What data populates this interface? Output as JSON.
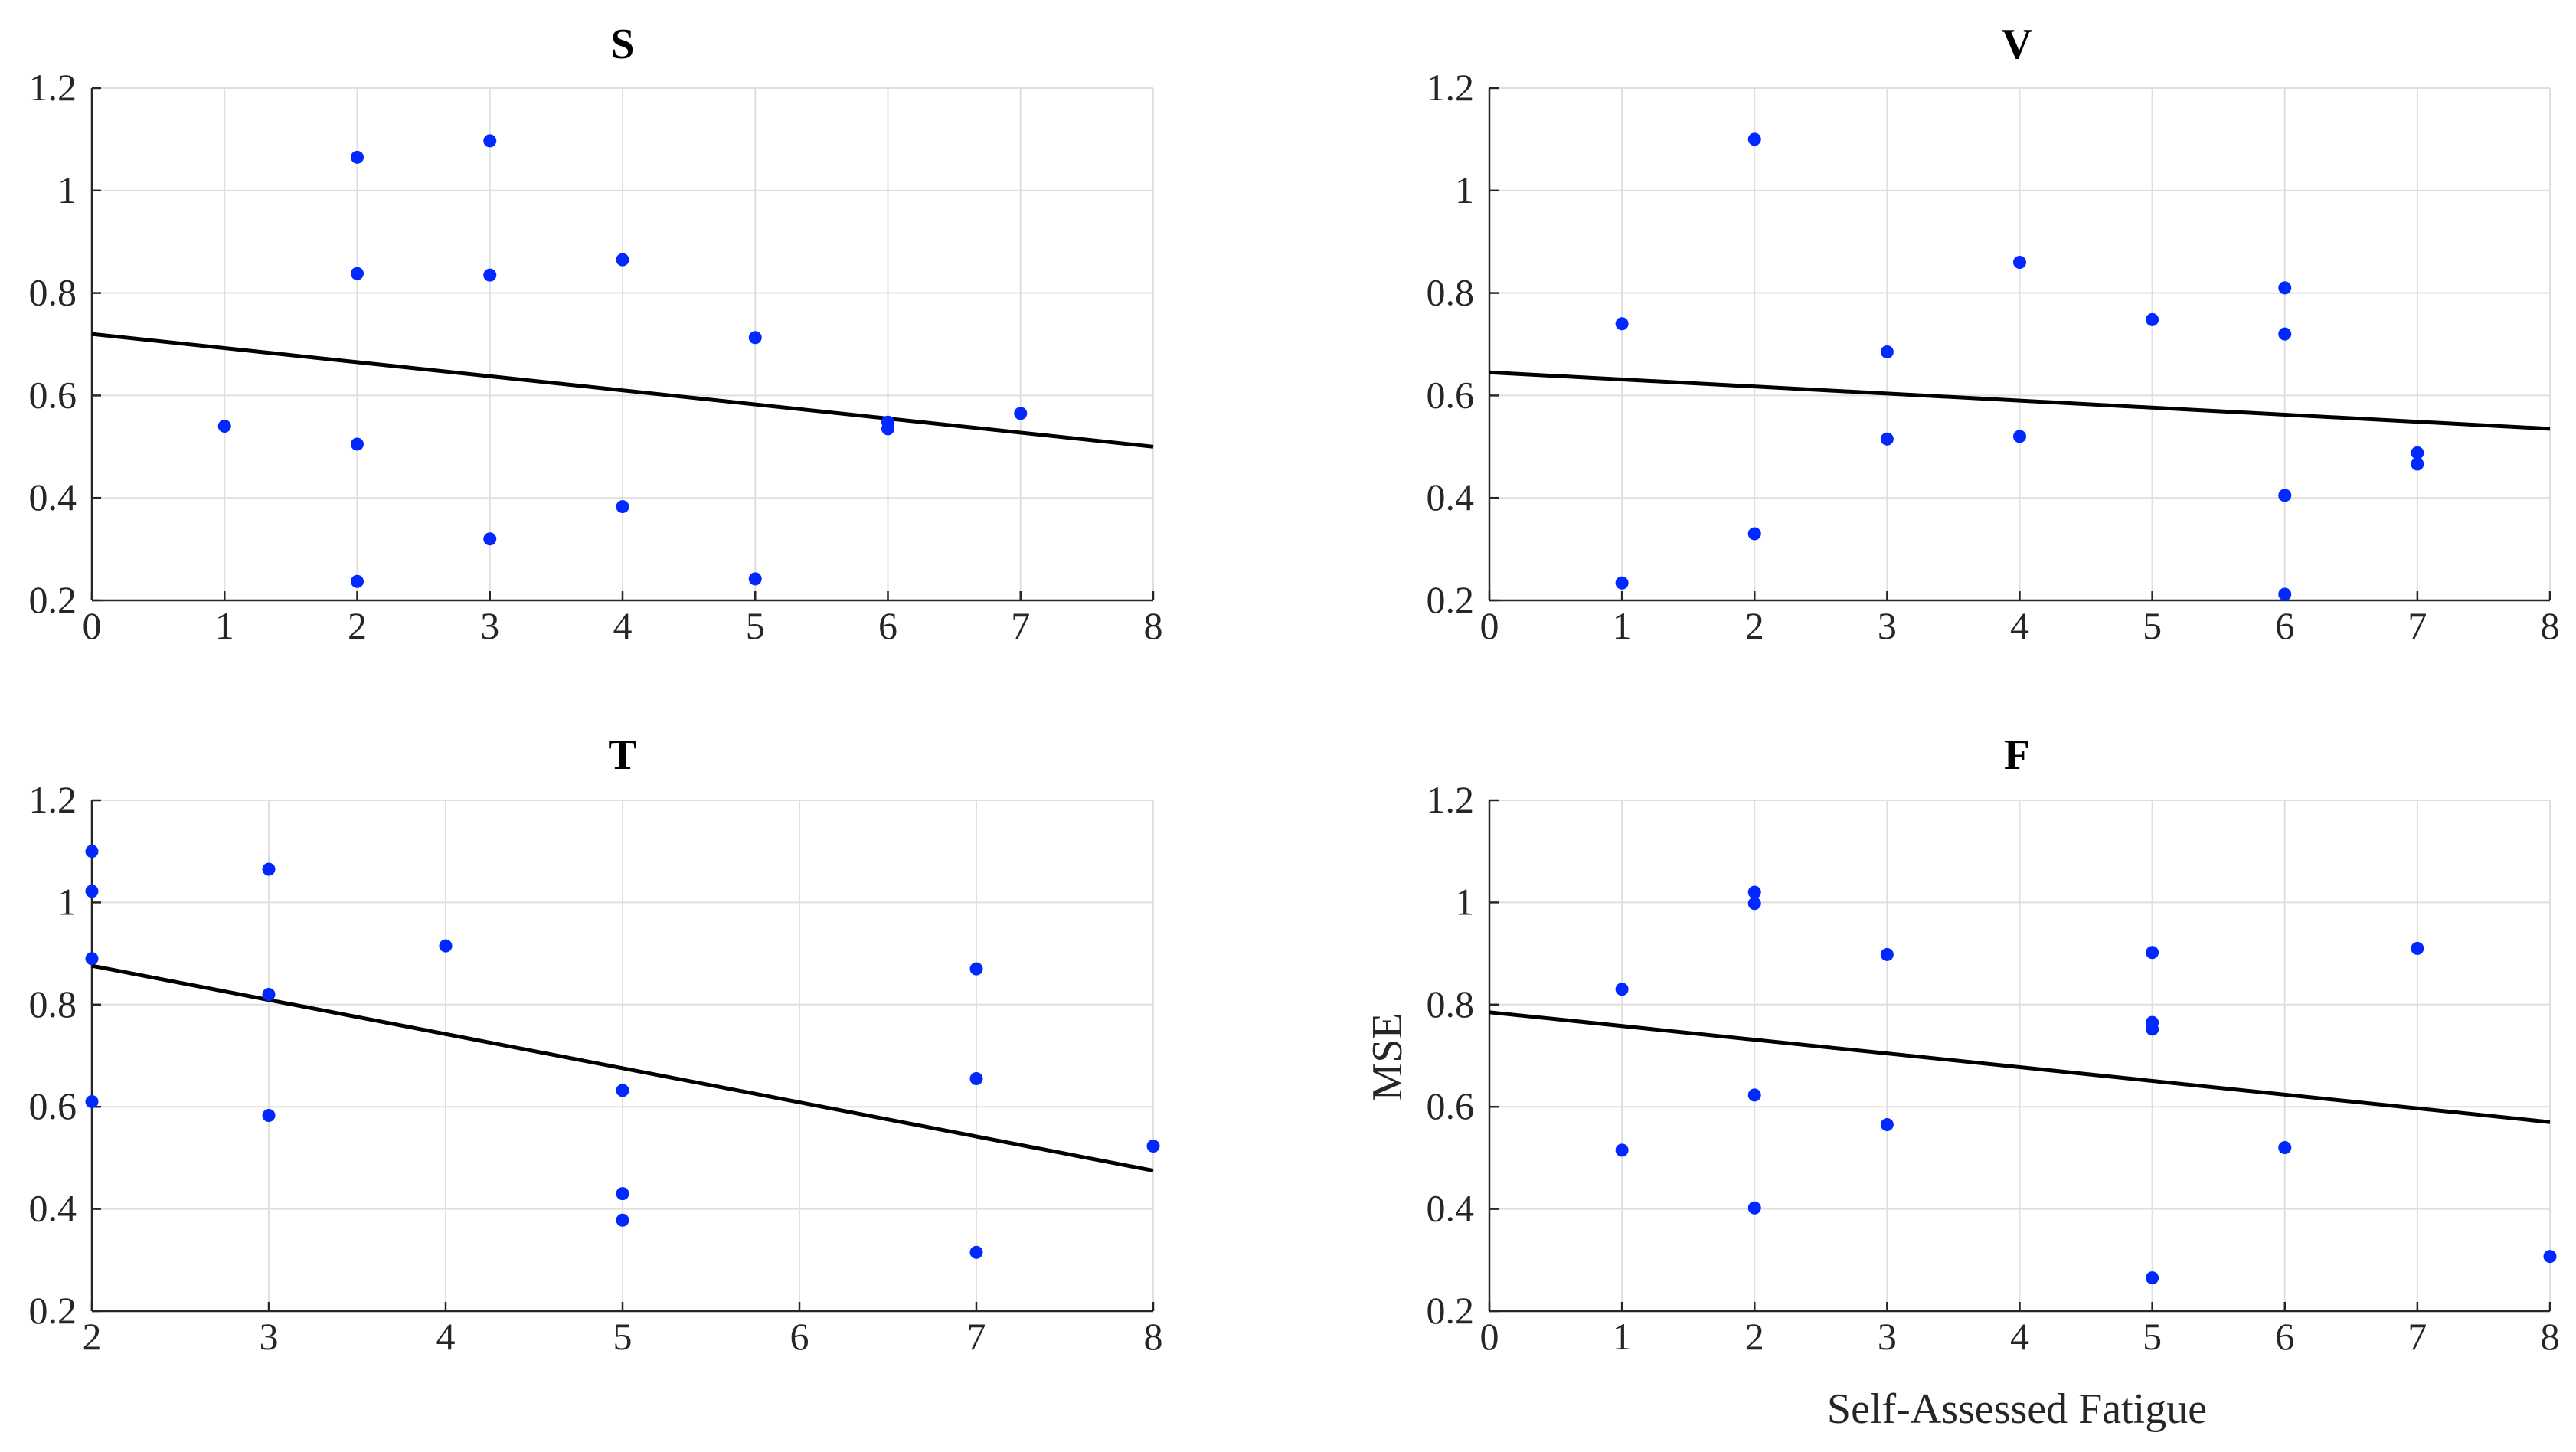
{
  "chart_data": [
    {
      "type": "scatter",
      "title": "S",
      "xlabel": "",
      "ylabel": "",
      "xlim": [
        0,
        8
      ],
      "ylim": [
        0.2,
        1.2
      ],
      "xticks": [
        "0",
        "1",
        "2",
        "3",
        "4",
        "5",
        "6",
        "7",
        "8"
      ],
      "yticks": [
        "0.2",
        "0.4",
        "0.6",
        "0.8",
        "1",
        "1.2"
      ],
      "grid": true,
      "points": [
        {
          "x": 1,
          "y": 0.54
        },
        {
          "x": 2,
          "y": 1.065
        },
        {
          "x": 2,
          "y": 0.838
        },
        {
          "x": 2,
          "y": 0.505
        },
        {
          "x": 2,
          "y": 0.237
        },
        {
          "x": 3,
          "y": 1.097
        },
        {
          "x": 3,
          "y": 0.835
        },
        {
          "x": 3,
          "y": 0.32
        },
        {
          "x": 4,
          "y": 0.865
        },
        {
          "x": 4,
          "y": 0.383
        },
        {
          "x": 5,
          "y": 0.713
        },
        {
          "x": 5,
          "y": 0.242
        },
        {
          "x": 6,
          "y": 0.548
        },
        {
          "x": 6,
          "y": 0.535
        },
        {
          "x": 7,
          "y": 0.565
        }
      ],
      "fit_line": {
        "x": [
          0,
          8
        ],
        "y": [
          0.72,
          0.5
        ]
      }
    },
    {
      "type": "scatter",
      "title": "V",
      "xlabel": "",
      "ylabel": "",
      "xlim": [
        0,
        8
      ],
      "ylim": [
        0.2,
        1.2
      ],
      "xticks": [
        "0",
        "1",
        "2",
        "3",
        "4",
        "5",
        "6",
        "7",
        "8"
      ],
      "yticks": [
        "0.2",
        "0.4",
        "0.6",
        "0.8",
        "1",
        "1.2"
      ],
      "grid": true,
      "points": [
        {
          "x": 1,
          "y": 0.74
        },
        {
          "x": 1,
          "y": 0.234
        },
        {
          "x": 2,
          "y": 1.1
        },
        {
          "x": 2,
          "y": 0.33
        },
        {
          "x": 3,
          "y": 0.685
        },
        {
          "x": 3,
          "y": 0.515
        },
        {
          "x": 4,
          "y": 0.86
        },
        {
          "x": 4,
          "y": 0.52
        },
        {
          "x": 5,
          "y": 0.748
        },
        {
          "x": 6,
          "y": 0.81
        },
        {
          "x": 6,
          "y": 0.72
        },
        {
          "x": 6,
          "y": 0.405
        },
        {
          "x": 6,
          "y": 0.212
        },
        {
          "x": 7,
          "y": 0.488
        },
        {
          "x": 7,
          "y": 0.466
        }
      ],
      "fit_line": {
        "x": [
          0,
          8
        ],
        "y": [
          0.645,
          0.535
        ]
      }
    },
    {
      "type": "scatter",
      "title": "T",
      "xlabel": "",
      "ylabel": "",
      "xlim": [
        2,
        8
      ],
      "ylim": [
        0.2,
        1.2
      ],
      "xticks": [
        "2",
        "3",
        "4",
        "5",
        "6",
        "7",
        "8"
      ],
      "yticks": [
        "0.2",
        "0.4",
        "0.6",
        "0.8",
        "1",
        "1.2"
      ],
      "grid": true,
      "points": [
        {
          "x": 2,
          "y": 1.1
        },
        {
          "x": 2,
          "y": 1.022
        },
        {
          "x": 2,
          "y": 0.89
        },
        {
          "x": 2,
          "y": 0.61
        },
        {
          "x": 3,
          "y": 1.065
        },
        {
          "x": 3,
          "y": 0.82
        },
        {
          "x": 3,
          "y": 0.583
        },
        {
          "x": 4,
          "y": 0.915
        },
        {
          "x": 5,
          "y": 0.632
        },
        {
          "x": 5,
          "y": 0.43
        },
        {
          "x": 5,
          "y": 0.378
        },
        {
          "x": 7,
          "y": 0.87
        },
        {
          "x": 7,
          "y": 0.655
        },
        {
          "x": 7,
          "y": 0.315
        },
        {
          "x": 8,
          "y": 0.523
        }
      ],
      "fit_line": {
        "x": [
          2,
          8
        ],
        "y": [
          0.876,
          0.475
        ]
      }
    },
    {
      "type": "scatter",
      "title": "F",
      "xlabel": "Self-Assessed Fatigue",
      "ylabel": "MSE",
      "xlim": [
        0,
        8
      ],
      "ylim": [
        0.2,
        1.2
      ],
      "xticks": [
        "0",
        "1",
        "2",
        "3",
        "4",
        "5",
        "6",
        "7",
        "8"
      ],
      "yticks": [
        "0.2",
        "0.4",
        "0.6",
        "0.8",
        "1",
        "1.2"
      ],
      "grid": true,
      "points": [
        {
          "x": 1,
          "y": 0.83
        },
        {
          "x": 1,
          "y": 0.515
        },
        {
          "x": 2,
          "y": 1.02
        },
        {
          "x": 2,
          "y": 0.998
        },
        {
          "x": 2,
          "y": 0.623
        },
        {
          "x": 2,
          "y": 0.402
        },
        {
          "x": 3,
          "y": 0.898
        },
        {
          "x": 3,
          "y": 0.565
        },
        {
          "x": 5,
          "y": 0.902
        },
        {
          "x": 5,
          "y": 0.765
        },
        {
          "x": 5,
          "y": 0.752
        },
        {
          "x": 5,
          "y": 0.265
        },
        {
          "x": 6,
          "y": 0.52
        },
        {
          "x": 7,
          "y": 0.91
        },
        {
          "x": 8,
          "y": 0.307
        }
      ],
      "fit_line": {
        "x": [
          0,
          8
        ],
        "y": [
          0.785,
          0.57
        ]
      }
    }
  ],
  "colors": {
    "points": "#0028ff",
    "fit_line": "#000000",
    "grid": "#dfdfdf",
    "axes": "#262626"
  }
}
